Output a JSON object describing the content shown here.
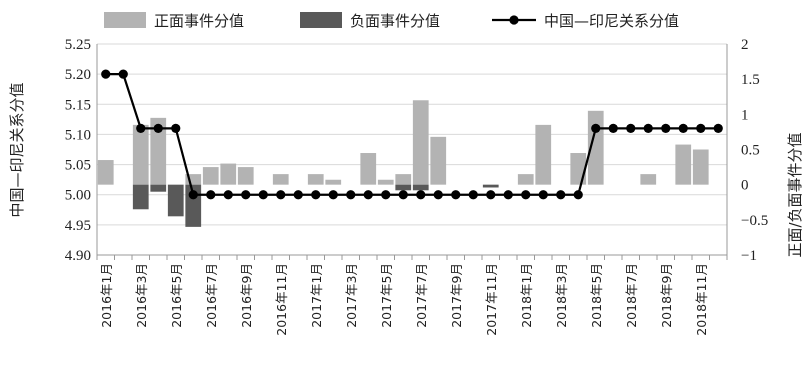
{
  "chart_data": {
    "type": "bar+line",
    "legend": [
      {
        "key": "pos",
        "label": "正面事件分值",
        "color": "#b3b3b3"
      },
      {
        "key": "neg",
        "label": "负面事件分值",
        "color": "#595959"
      },
      {
        "key": "rel",
        "label": "中国—印尼关系分值",
        "color": "#000000"
      }
    ],
    "legend_position": "top",
    "ylabel_left": "中国—印尼关系分值",
    "ylabel_right": "正面/负面事件分值",
    "ylim_left": [
      4.9,
      5.25
    ],
    "yticks_left": [
      "4.90",
      "4.95",
      "5.00",
      "5.05",
      "5.10",
      "5.15",
      "5.20",
      "5.25"
    ],
    "ylim_right": [
      -1,
      2
    ],
    "yticks_right": [
      "−1",
      "−0.5",
      "0",
      "0.5",
      "1",
      "1.5",
      "2"
    ],
    "x_tick_labels": [
      "2016年1月",
      "2016年3月",
      "2016年5月",
      "2016年7月",
      "2016年9月",
      "2016年11月",
      "2017年1月",
      "2017年3月",
      "2017年5月",
      "2017年7月",
      "2017年9月",
      "2017年11月",
      "2018年1月",
      "2018年3月",
      "2018年5月",
      "2018年7月",
      "2018年9月",
      "2018年11月"
    ],
    "months": 36,
    "positive": [
      0.35,
      0,
      0.85,
      0.95,
      0,
      0.15,
      0.25,
      0.3,
      0.25,
      0,
      0.15,
      0,
      0.15,
      0.07,
      0,
      0.45,
      0.07,
      0.15,
      1.2,
      0.68,
      0,
      0,
      0,
      0,
      0.15,
      0.85,
      0,
      0.45,
      1.05,
      0,
      0,
      0.15,
      0,
      0.57,
      0.5,
      0
    ],
    "negative": [
      0,
      0,
      -0.35,
      -0.1,
      -0.45,
      -0.6,
      0,
      0,
      0,
      0,
      0,
      0,
      0,
      0,
      0,
      0,
      0,
      -0.08,
      -0.08,
      0,
      0,
      0,
      -0.04,
      0,
      0,
      0,
      0,
      0,
      0,
      0,
      0,
      0,
      0,
      0,
      0,
      0
    ],
    "relation": [
      5.2,
      5.2,
      5.11,
      5.11,
      5.11,
      5.0,
      5.0,
      5.0,
      5.0,
      5.0,
      5.0,
      5.0,
      5.0,
      5.0,
      5.0,
      5.0,
      5.0,
      5.0,
      5.0,
      5.0,
      5.0,
      5.0,
      5.0,
      5.0,
      5.0,
      5.0,
      5.0,
      5.0,
      5.11,
      5.11,
      5.11,
      5.11,
      5.11,
      5.11,
      5.11,
      5.11
    ],
    "grid": "horizontal"
  }
}
